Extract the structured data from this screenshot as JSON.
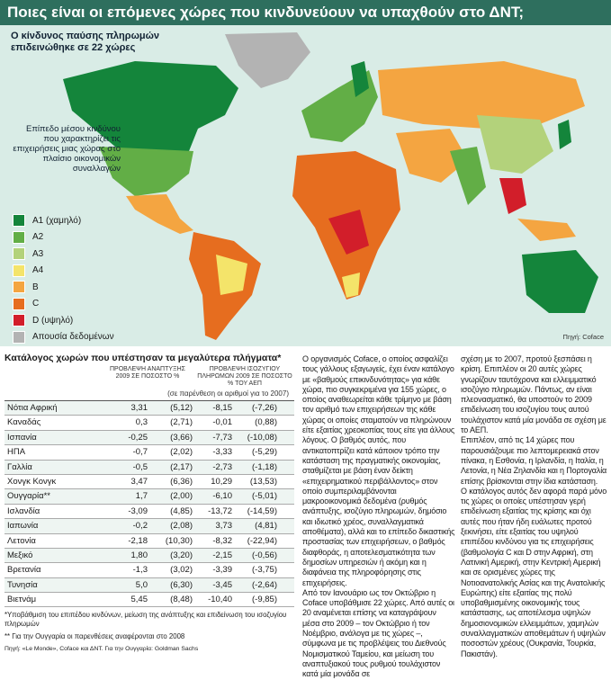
{
  "header": {
    "title": "Ποιες είναι οι επόμενες χώρες που κινδυνεύουν να υπαχθούν στο ΔΝΤ;"
  },
  "map": {
    "subtitle": "Ο κίνδυνος παύσης πληρωμών επιδεινώθηκε σε 22 χώρες",
    "source": "Πηγή: Coface"
  },
  "legend": {
    "title": "Επίπεδο μέσου κινδύνου που χαρακτηρίζει τις επιχειρήσεις μιας χώρας στο πλαίσιο οικονομικών συναλλαγών",
    "items": [
      {
        "label": "A1 (χαμηλό)",
        "color": "#14853b"
      },
      {
        "label": "A2",
        "color": "#62ae46"
      },
      {
        "label": "A3",
        "color": "#b3d27b"
      },
      {
        "label": "A4",
        "color": "#f4e46a"
      },
      {
        "label": "B",
        "color": "#f4a541"
      },
      {
        "label": "C",
        "color": "#e66d1f"
      },
      {
        "label": "D (υψηλό)",
        "color": "#d21e2a"
      },
      {
        "label": "Απουσία δεδομένων",
        "color": "#b3b3b3"
      }
    ]
  },
  "table": {
    "title": "Κατάλογος χωρών που υπέστησαν τα μεγαλύτερα πλήγματα*",
    "headers": [
      "ΠΡΟΒΛΕΨΗ ΑΝΑΠΤΥΞΗΣ 2009 ΣΕ ΠΟΣΟΣΤΟ %",
      "ΠΡΟΒΛΕΨΗ ΙΣΟΖΥΓΙΟΥ ΠΛΗΡΩΜΩΝ 2009 ΣΕ ΠΟΣΟΣΤΟ % ΤΟΥ ΑΕΠ"
    ],
    "subheader": "(σε παρένθεση οι αριθμοί για το 2007)",
    "rows": [
      [
        "Νότια Αφρική",
        "3,31",
        "(5,12)",
        "-8,15",
        "(-7,26)"
      ],
      [
        "Καναδάς",
        "0,3",
        "(2,71)",
        "-0,01",
        "(0,88)"
      ],
      [
        "Ισπανία",
        "-0,25",
        "(3,66)",
        "-7,73",
        "(-10,08)"
      ],
      [
        "ΗΠΑ",
        "-0,7",
        "(2,02)",
        "-3,33",
        "(-5,29)"
      ],
      [
        "Γαλλία",
        "-0,5",
        "(2,17)",
        "-2,73",
        "(-1,18)"
      ],
      [
        "Χονγκ Κονγκ",
        "3,47",
        "(6,36)",
        "10,29",
        "(13,53)"
      ],
      [
        "Ουγγαρία**",
        "1,7",
        "(2,00)",
        "-6,10",
        "(-5,01)"
      ],
      [
        "Ισλανδία",
        "-3,09",
        "(4,85)",
        "-13,72",
        "(-14,59)"
      ],
      [
        "Ιαπωνία",
        "-0,2",
        "(2,08)",
        "3,73",
        "(4,81)"
      ],
      [
        "Λετονία",
        "-2,18",
        "(10,30)",
        "-8,32",
        "(-22,94)"
      ],
      [
        "Μεξικό",
        "1,80",
        "(3,20)",
        "-2,15",
        "(-0,56)"
      ],
      [
        "Βρετανία",
        "-1,3",
        "(3,02)",
        "-3,39",
        "(-3,75)"
      ],
      [
        "Τυνησία",
        "5,0",
        "(6,30)",
        "-3,45",
        "(-2,64)"
      ],
      [
        "Βιετνάμ",
        "5,45",
        "(8,48)",
        "-10,40",
        "(-9,85)"
      ]
    ],
    "footnotes": [
      "*Υποβάθμιση του επιπέδου κινδύνων, μείωση της ανάπτυξης και επιδείνωση του ισοζυγίου πληρωμών",
      "** Για την Ουγγαρία οι παρενθέσεις αναφέρονται στο 2008",
      "Πηγή: «Le Monde», Coface και ΔΝΤ. Για την Ουγγαρία: Goldman Sachs"
    ]
  },
  "article": {
    "columns": [
      [
        "Ο οργανισμός Coface, ο οποίος ασφαλίζει τους γάλλους εξαγωγείς, έχει έναν κατάλογο με «βαθμούς επικινδυνότητας» για κάθε χώρα, πιο συγκεκριμένα για 155 χώρες, ο οποίος αναθεωρείται κάθε τρίμηνο με βάση τον αριθμό των επιχειρήσεων της κάθε χώρας οι οποίες σταματούν να πληρώνουν είτε εξαιτίας χρεοκοπίας τους είτε για άλλους λόγους. Ο βαθμός αυτός, που αντικατοπτρίζει κατά κάποιον τρόπο την κατάσταση της πραγματικής οικονομίας, σταθμίζεται με βάση έναν δείκτη «επιχειρηματικού περιβάλλοντος» στον οποίο συμπεριλαμβάνονται μακροοικονομικά δεδομένα (ρυθμός ανάπτυξης, ισοζύγιο πληρωμών, δημόσιο και ιδιωτικό χρέος, συναλλαγματικά αποθέματα), αλλά και το επίπεδο δικαστικής προστασίας των επιχειρήσεων, ο βαθμός διαφθοράς, η αποτελεσματικότητα των δημοσίων υπηρεσιών ή ακόμη και η διαφάνεια της πληροφόρησης στις επιχειρήσεις.",
        "Από τον Ιανουάριο ως τον Οκτώβριο η Coface υποβάθμισε 22 χώρες. Από αυτές οι 20 αναμένεται επίσης να καταγράψουν μέσα στο 2009 – τον Οκτώβριο ή τον Νοέμβριο, ανάλογα με τις χώρες –, σύμφωνα με τις προβλέψεις του Διεθνούς Νομισματικού Ταμείου, και μείωση του αναπτυξιακού τους ρυθμού τουλάχιστον κατά μία μονάδα σε"
      ],
      [
        "σχέση με το 2007, προτού ξεσπάσει η κρίση. Επιπλέον οι 20 αυτές χώρες γνωρίζουν ταυτόχρονα και ελλειμματικό ισοζύγιο πληρωμών. Πάντως, αν είναι πλεονασματικό, θα υποστούν το 2009 επιδείνωση του ισοζυγίου τους αυτού τουλάχιστον κατά μία μονάδα σε σχέση με το ΑΕΠ.",
        "Επιπλέον, από τις 14 χώρες που παρουσιάζουμε πιο λεπτομερειακά στον πίνακα, η Εσθονία, η Ιρλανδία, η Ιταλία, η Λετονία, η Νέα Ζηλανδία και η Πορτογαλία επίσης βρίσκονται στην ίδια κατάσταση.",
        "Ο κατάλογος αυτός δεν αφορά παρά μόνο τις χώρες οι οποίες υπέστησαν γερή επιδείνωση εξαιτίας της κρίσης και όχι αυτές που ήταν ήδη ευάλωτες προτού ξεκινήσει, είτε εξαιτίας του υψηλού επιπέδου κινδύνου για τις επιχειρήσεις (βαθμολογία C και D στην Αφρική, στη Λατινική Αμερική, στην Κεντρική Αμερική και σε ορισμένες χώρες της Νοτιοανατολικής Ασίας και της Ανατολικής Ευρώπης) είτε εξαιτίας της πολύ υποβαθμισμένης οικονομικής τους κατάστασης, ως αποτέλεσμα υψηλών δημοσιονομικών ελλειμμάτων, χαμηλών συναλλαγματικών αποθεμάτων ή υψηλών ποσοστών χρέους (Ουκρανία, Τουρκία, Πακιστάν)."
      ]
    ]
  }
}
